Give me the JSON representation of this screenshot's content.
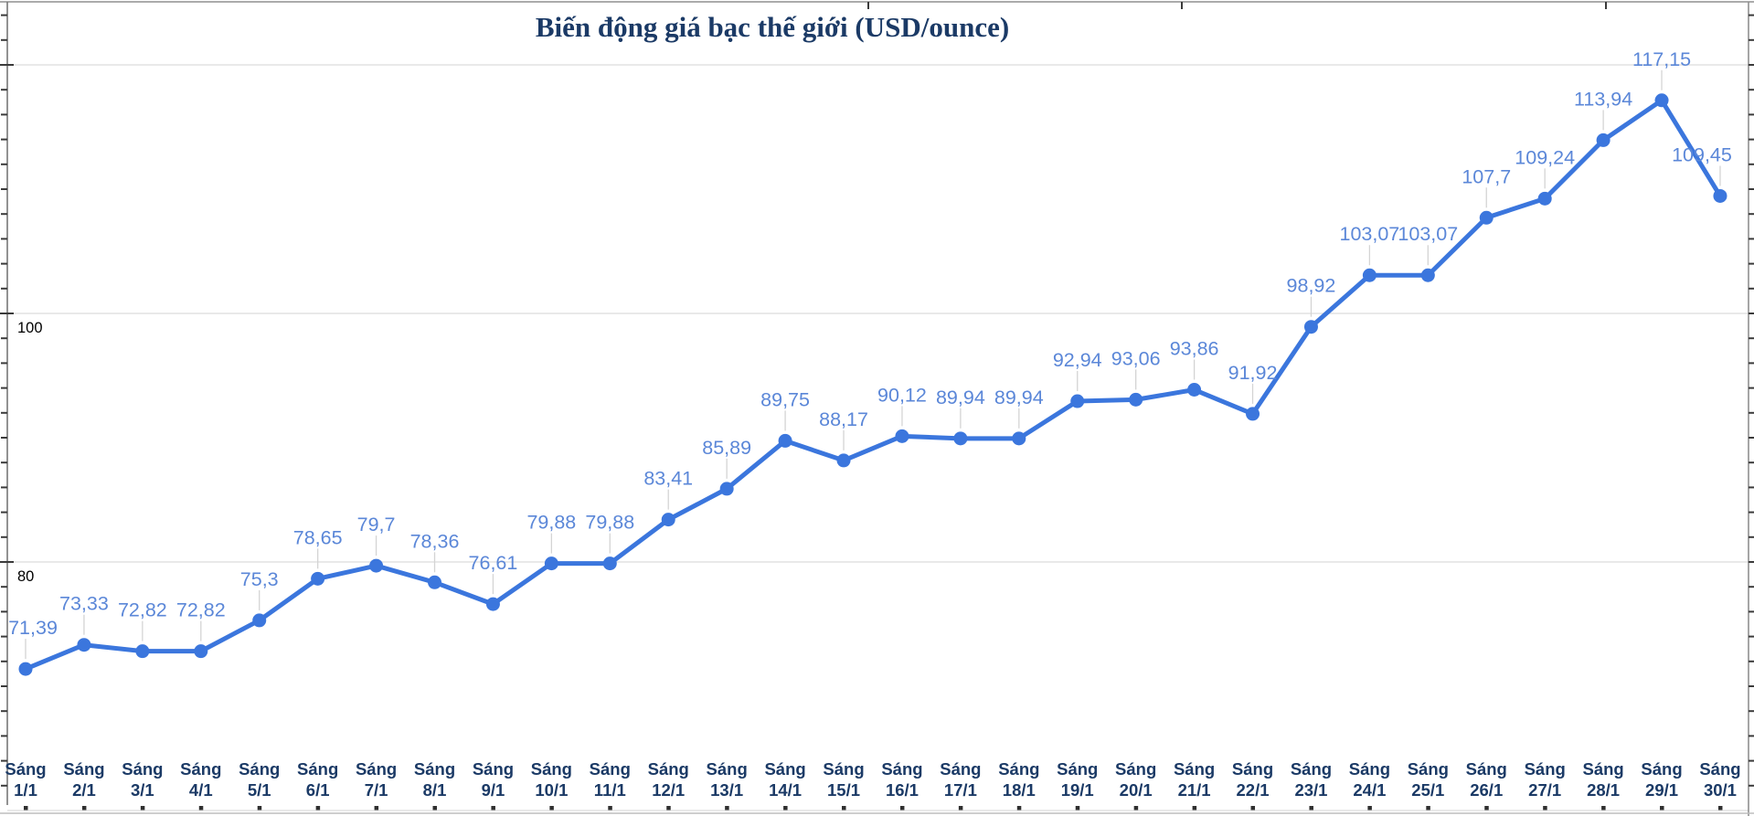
{
  "title": "Biến động giá bạc thế giới (USD/ounce)",
  "chart_data": {
    "type": "line",
    "title": "Biến động giá bạc thế giới (USD/ounce)",
    "categories": [
      "Sáng 1/1",
      "Sáng 2/1",
      "Sáng 3/1",
      "Sáng 4/1",
      "Sáng 5/1",
      "Sáng 6/1",
      "Sáng 7/1",
      "Sáng 8/1",
      "Sáng 9/1",
      "Sáng 10/1",
      "Sáng 11/1",
      "Sáng 12/1",
      "Sáng 13/1",
      "Sáng 14/1",
      "Sáng 15/1",
      "Sáng 16/1",
      "Sáng 17/1",
      "Sáng 18/1",
      "Sáng 19/1",
      "Sáng 20/1",
      "Sáng 21/1",
      "Sáng 22/1",
      "Sáng 23/1",
      "Sáng 24/1",
      "Sáng 25/1",
      "Sáng 26/1",
      "Sáng 27/1",
      "Sáng 28/1",
      "Sáng 29/1",
      "Sáng 30/1"
    ],
    "values": [
      71.39,
      73.33,
      72.82,
      72.82,
      75.3,
      78.65,
      79.7,
      78.36,
      76.61,
      79.88,
      79.88,
      83.41,
      85.89,
      89.75,
      88.17,
      90.12,
      89.94,
      89.94,
      92.94,
      93.06,
      93.86,
      91.92,
      98.92,
      103.07,
      103.07,
      107.7,
      109.24,
      113.94,
      117.15,
      109.45
    ],
    "point_labels": [
      "71,39",
      "73,33",
      "72,82",
      "72,82",
      "75,3",
      "78,65",
      "79,7",
      "78,36",
      "76,61",
      "79,88",
      "79,88",
      "83,41",
      "85,89",
      "89,75",
      "88,17",
      "90,12",
      "89,94",
      "89,94",
      "92,94",
      "93,06",
      "93,86",
      "91,92",
      "98,92",
      "103,07",
      "103,07",
      "107,7",
      "109,24",
      "113,94",
      "117,15",
      "109,45"
    ],
    "xlabel": "",
    "ylabel": "",
    "ylim": [
      60,
      124
    ],
    "yticks": [
      80,
      100
    ],
    "gridline_values": [
      60,
      80,
      100,
      120
    ],
    "grid": true,
    "legend": "none",
    "colors": {
      "line": "#3b76dd",
      "marker": "#3b76dd",
      "data_label": "#5b87d8",
      "title": "#1b3a66",
      "category_label": "#1b3a66",
      "ytick_label": "#000000",
      "gridline": "#e2e2e2",
      "axis_line": "#8f8f8f",
      "tick": "#3a3a3a",
      "leader_line": "#d4d4d4",
      "bottom_line": "#bdbdbd",
      "bottom_dot": "#2f2f2f"
    }
  }
}
